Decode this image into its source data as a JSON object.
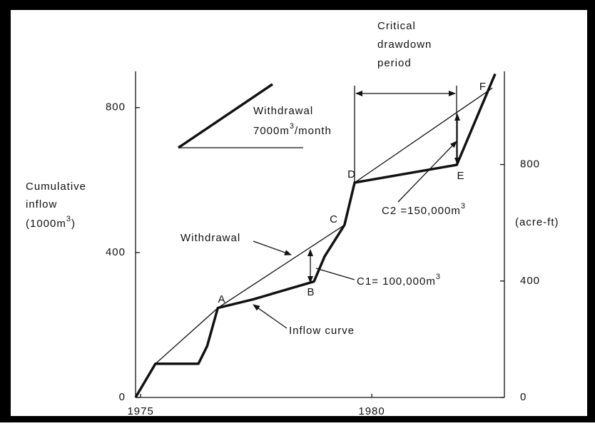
{
  "chart_data": {
    "type": "line",
    "xlim": [
      1974.89,
      1982.87
    ],
    "xticks": [
      1975,
      1980
    ],
    "ylim": [
      0,
      900
    ],
    "yticks": [
      0,
      400,
      800
    ],
    "y2lim": [
      0,
      1120
    ],
    "y2ticks": [
      0,
      400,
      800
    ],
    "y_label": [
      "Cumulative",
      "inflow"
    ],
    "y_label_unit": {
      "pre": "(1000m",
      "sup": "3",
      "post": ")"
    },
    "y2_label": "(acre-ft)",
    "series": [
      {
        "name": "Inflow curve",
        "color": "#111111",
        "style": "thick",
        "x": [
          1974.89,
          1975.32,
          1976.25,
          1976.44,
          1976.67,
          1977.44,
          1978.75,
          1978.98,
          1979.41,
          1979.63,
          1981.84,
          1982.67
        ],
        "values": [
          0,
          93,
          93,
          142,
          247,
          271,
          320,
          389,
          476,
          593,
          642,
          893
        ]
      },
      {
        "name": "Withdrawal",
        "color": "#111111",
        "style": "thin",
        "x": [
          1975.32,
          1976.67,
          1979.41,
          null,
          1979.63,
          1982.61
        ],
        "values": [
          93,
          247,
          476,
          null,
          593,
          854
        ]
      }
    ],
    "points": [
      "A",
      "B",
      "C",
      "D",
      "E",
      "F"
    ],
    "rate_label": {
      "line1": "Withdrawal",
      "pre": "7000m",
      "sup": "3",
      "post": "/month"
    },
    "period_label": [
      "Critical",
      "drawdown",
      "period"
    ],
    "c1_label": {
      "pre": "C1=  100,000m",
      "sup": "3"
    },
    "c2_label": {
      "pre": "C2  =150,000m",
      "sup": "3"
    }
  }
}
